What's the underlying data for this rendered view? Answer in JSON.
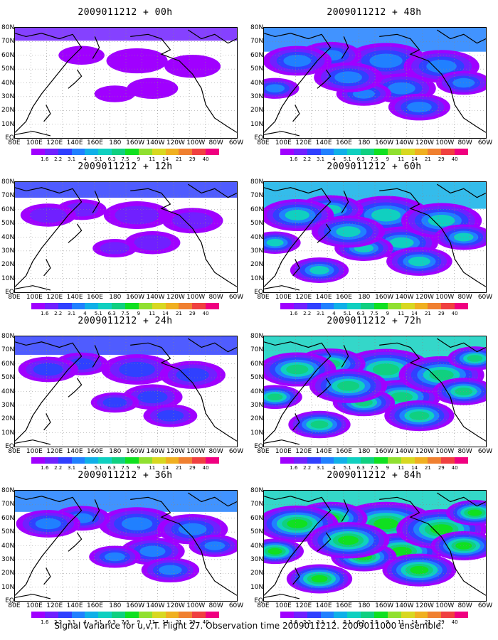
{
  "colors": {
    "colorbar": [
      "#a000ff",
      "#7020ff",
      "#3040ff",
      "#2080ff",
      "#10b0e8",
      "#10d0c0",
      "#10d080",
      "#10e020",
      "#90e030",
      "#d8d820",
      "#f0b020",
      "#f08030",
      "#f04040",
      "#f00080"
    ],
    "map_fill_low": "#a000e0",
    "coast": "#000000"
  },
  "colorbar_labels": [
    "1.6",
    "2.2",
    "3.1",
    "4",
    "5.1",
    "6.3",
    "7.5",
    "9",
    "11",
    "14",
    "21",
    "29",
    "40"
  ],
  "y_labels": [
    "80N",
    "70N",
    "60N",
    "50N",
    "40N",
    "30N",
    "20N",
    "10N",
    "EQ"
  ],
  "x_labels": [
    "80E",
    "100E",
    "120E",
    "140E",
    "160E",
    "180",
    "160W",
    "140W",
    "120W",
    "100W",
    "80W",
    "60W"
  ],
  "panels": [
    {
      "title": "2009011212 + 00h",
      "intensity": 0.15
    },
    {
      "title": "2009011212 + 48h",
      "intensity": 0.55
    },
    {
      "title": "2009011212 + 12h",
      "intensity": 0.25
    },
    {
      "title": "2009011212 + 60h",
      "intensity": 0.65
    },
    {
      "title": "2009011212 + 24h",
      "intensity": 0.35
    },
    {
      "title": "2009011212 + 72h",
      "intensity": 0.75
    },
    {
      "title": "2009011212 + 36h",
      "intensity": 0.45
    },
    {
      "title": "2009011212 + 84h",
      "intensity": 0.85
    }
  ],
  "footer": "Signal Variance for u,v,T. Flight 27. Observation time 2009011212. 2009011000 ensemble."
}
